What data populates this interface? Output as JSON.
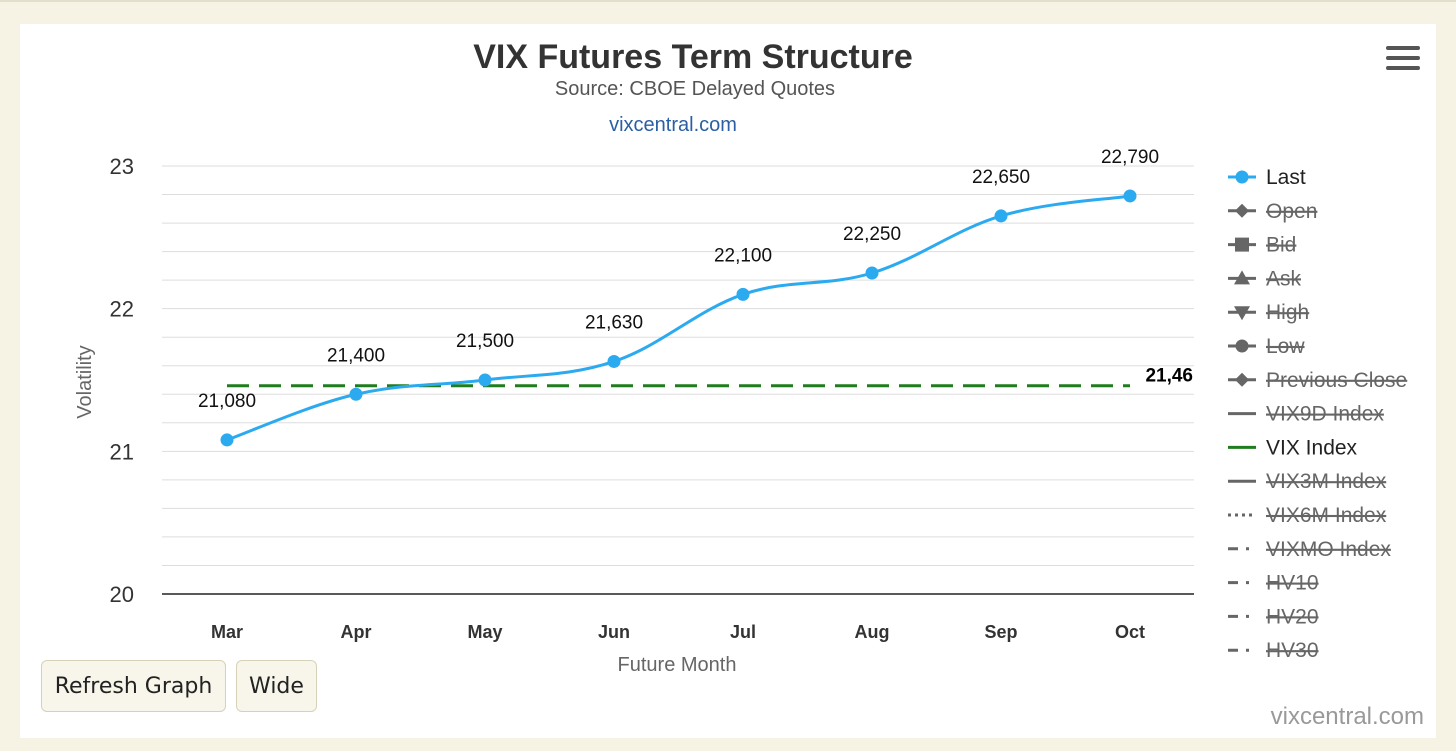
{
  "chart_data": {
    "type": "line",
    "title": "VIX Futures Term Structure",
    "subtitle": "Source: CBOE Delayed Quotes",
    "link": "vixcentral.com",
    "xlabel": "Future Month",
    "ylabel": "Volatility",
    "categories": [
      "Mar",
      "Apr",
      "May",
      "Jun",
      "Jul",
      "Aug",
      "Sep",
      "Oct"
    ],
    "yticks": [
      "23",
      "22",
      "21",
      "20"
    ],
    "ylim": [
      20,
      23
    ],
    "grid": true,
    "legend_position": "right",
    "series": [
      {
        "name": "Last",
        "values": [
          21.08,
          21.4,
          21.5,
          21.63,
          22.1,
          22.25,
          22.65,
          22.79
        ],
        "labels": [
          "21,080",
          "21,400",
          "21,500",
          "21,630",
          "22,100",
          "22,250",
          "22,650",
          "22,790"
        ],
        "color": "#2caaf0",
        "markers": true,
        "smooth": true
      },
      {
        "name": "VIX Index",
        "value": 21.46,
        "label": "21,46",
        "color": "#1f7d1f",
        "dashed": true
      }
    ]
  },
  "legend": [
    {
      "label": "Last",
      "active": true,
      "symbol": "circle",
      "color": "#2caaf0"
    },
    {
      "label": "Open",
      "active": false,
      "symbol": "diamond",
      "color": "#666666"
    },
    {
      "label": "Bid",
      "active": false,
      "symbol": "square",
      "color": "#666666"
    },
    {
      "label": "Ask",
      "active": false,
      "symbol": "triangle",
      "color": "#666666"
    },
    {
      "label": "High",
      "active": false,
      "symbol": "triangle-down",
      "color": "#666666"
    },
    {
      "label": "Low",
      "active": false,
      "symbol": "circle",
      "color": "#666666"
    },
    {
      "label": "Previous Close",
      "active": false,
      "symbol": "diamond",
      "color": "#666666"
    },
    {
      "label": "VIX9D Index",
      "active": false,
      "symbol": "line",
      "color": "#666666"
    },
    {
      "label": "VIX Index",
      "active": true,
      "symbol": "line",
      "color": "#1f7d1f"
    },
    {
      "label": "VIX3M Index",
      "active": false,
      "symbol": "line",
      "color": "#666666"
    },
    {
      "label": "VIX6M Index",
      "active": false,
      "symbol": "dotted",
      "color": "#666666"
    },
    {
      "label": "VIXMO Index",
      "active": false,
      "symbol": "dashdot",
      "color": "#666666"
    },
    {
      "label": "HV10",
      "active": false,
      "symbol": "dashdot",
      "color": "#666666"
    },
    {
      "label": "HV20",
      "active": false,
      "symbol": "dashdot",
      "color": "#666666"
    },
    {
      "label": "HV30",
      "active": false,
      "symbol": "dashdot",
      "color": "#666666"
    }
  ],
  "buttons": {
    "refresh": "Refresh Graph",
    "wide": "Wide"
  },
  "credit": "vixcentral.com",
  "menu_icon": "hamburger-menu-icon"
}
